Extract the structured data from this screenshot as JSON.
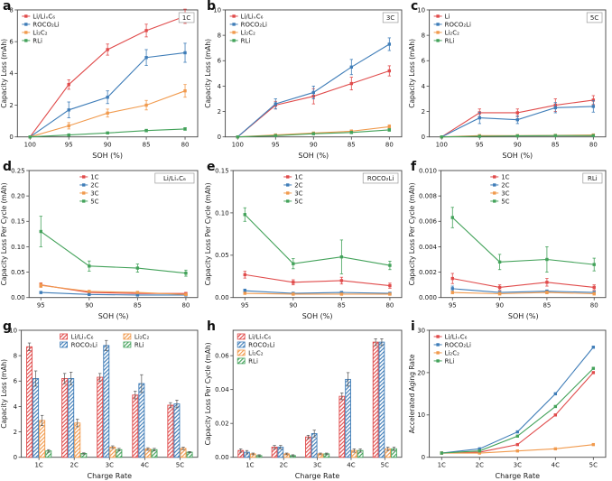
{
  "colors": {
    "red": "#e04b4b",
    "blue": "#3f7db8",
    "orange": "#f19a4d",
    "green": "#43a25a"
  },
  "chart_data": [
    {
      "letter": "a",
      "type": "line",
      "box_label": "1C",
      "legend_pos": "top-left",
      "xlabel": "SOH (%)",
      "ylabel": "Capacity Loss (mAh)",
      "x_labels": [
        "100",
        "95",
        "90",
        "85",
        "80"
      ],
      "y_ticks": [
        "0",
        "2",
        "4",
        "6",
        "8"
      ],
      "ylim": [
        0,
        8
      ],
      "series": [
        {
          "label": "Li/LiₓC₆",
          "color": "red",
          "values": [
            0,
            3.3,
            5.5,
            6.7,
            7.6
          ],
          "err": [
            0,
            0.3,
            0.35,
            0.4,
            0.45
          ]
        },
        {
          "label": "ROCO₂Li",
          "color": "blue",
          "values": [
            0,
            1.7,
            2.5,
            5.0,
            5.3
          ],
          "err": [
            0,
            0.5,
            0.4,
            0.5,
            0.6
          ]
        },
        {
          "label": "Li₂C₂",
          "color": "orange",
          "values": [
            0,
            0.7,
            1.5,
            2.0,
            2.9
          ],
          "err": [
            0,
            0.2,
            0.25,
            0.3,
            0.4
          ]
        },
        {
          "label": "RLi",
          "color": "green",
          "values": [
            0,
            0.12,
            0.25,
            0.4,
            0.5
          ],
          "err": [
            0,
            0.05,
            0.05,
            0.08,
            0.08
          ]
        }
      ]
    },
    {
      "letter": "b",
      "type": "line",
      "box_label": "3C",
      "legend_pos": "top-left",
      "xlabel": "SOH (%)",
      "ylabel": "Capacity Loss (mAh)",
      "x_labels": [
        "100",
        "95",
        "90",
        "85",
        "80"
      ],
      "y_ticks": [
        "0",
        "2",
        "4",
        "6",
        "8",
        "10"
      ],
      "ylim": [
        0,
        10
      ],
      "series": [
        {
          "label": "Li/LiₓC₆",
          "color": "red",
          "values": [
            0,
            2.5,
            3.2,
            4.2,
            5.2
          ],
          "err": [
            0,
            0.3,
            0.6,
            0.5,
            0.4
          ]
        },
        {
          "label": "ROCO₂Li",
          "color": "blue",
          "values": [
            0,
            2.6,
            3.5,
            5.5,
            7.3
          ],
          "err": [
            0,
            0.4,
            0.5,
            0.6,
            0.5
          ]
        },
        {
          "label": "Li₂C₂",
          "color": "orange",
          "values": [
            0,
            0.15,
            0.3,
            0.45,
            0.8
          ],
          "err": [
            0,
            0.05,
            0.08,
            0.1,
            0.15
          ]
        },
        {
          "label": "RLi",
          "color": "green",
          "values": [
            0,
            0.1,
            0.25,
            0.35,
            0.55
          ],
          "err": [
            0,
            0.05,
            0.05,
            0.08,
            0.1
          ]
        }
      ]
    },
    {
      "letter": "c",
      "type": "line",
      "box_label": "5C",
      "legend_pos": "top-left",
      "xlabel": "SOH (%)",
      "ylabel": "Capacity Loss (mAh)",
      "x_labels": [
        "100",
        "95",
        "90",
        "85",
        "80"
      ],
      "y_ticks": [
        "0",
        "2",
        "4",
        "6",
        "8",
        "10"
      ],
      "ylim": [
        0,
        10
      ],
      "series": [
        {
          "label": "Li",
          "color": "red",
          "values": [
            0,
            1.9,
            1.9,
            2.5,
            2.9
          ],
          "err": [
            0,
            0.3,
            0.3,
            0.5,
            0.35
          ]
        },
        {
          "label": "ROCO₂Li",
          "color": "blue",
          "values": [
            0,
            1.5,
            1.35,
            2.3,
            2.4
          ],
          "err": [
            0,
            0.45,
            0.3,
            0.4,
            0.45
          ]
        },
        {
          "label": "Li₂C₂",
          "color": "orange",
          "values": [
            0,
            0.1,
            0.1,
            0.12,
            0.15
          ],
          "err": [
            0,
            0.05,
            0.05,
            0.05,
            0.05
          ]
        },
        {
          "label": "RLi",
          "color": "green",
          "values": [
            0,
            0.05,
            0.08,
            0.1,
            0.1
          ],
          "err": [
            0,
            0.03,
            0.03,
            0.04,
            0.04
          ]
        }
      ]
    },
    {
      "letter": "d",
      "type": "line",
      "box_label": "Li/LiₓC₆",
      "legend_pos": "mid-left",
      "xlabel": "SOH (%)",
      "ylabel": "Capacity Loss Per Cycle (mAh)",
      "x_labels": [
        "95",
        "90",
        "85",
        "80"
      ],
      "y_ticks": [
        "0.00",
        "0.05",
        "0.10",
        "0.15",
        "0.20",
        "0.25"
      ],
      "ylim": [
        0,
        0.25
      ],
      "series": [
        {
          "label": "1C",
          "color": "red",
          "values": [
            0.025,
            0.01,
            0.008,
            0.008
          ],
          "err": [
            0.004,
            0.002,
            0.002,
            0.002
          ]
        },
        {
          "label": "2C",
          "color": "blue",
          "values": [
            0.01,
            0.006,
            0.005,
            0.005
          ],
          "err": [
            0.002,
            0.001,
            0.001,
            0.001
          ]
        },
        {
          "label": "3C",
          "color": "orange",
          "values": [
            0.024,
            0.012,
            0.01,
            0.006
          ],
          "err": [
            0.004,
            0.002,
            0.002,
            0.001
          ]
        },
        {
          "label": "5C",
          "color": "green",
          "values": [
            0.13,
            0.062,
            0.058,
            0.048
          ],
          "err": [
            0.03,
            0.01,
            0.008,
            0.006
          ]
        }
      ]
    },
    {
      "letter": "e",
      "type": "line",
      "box_label": "ROCO₂Li",
      "legend_pos": "mid-left",
      "xlabel": "SOH (%)",
      "ylabel": "Capacity Loss Per Cycle (mAh)",
      "x_labels": [
        "95",
        "90",
        "85",
        "80"
      ],
      "y_ticks": [
        "0.00",
        "0.05",
        "0.10",
        "0.15"
      ],
      "ylim": [
        0,
        0.15
      ],
      "series": [
        {
          "label": "1C",
          "color": "red",
          "values": [
            0.027,
            0.018,
            0.02,
            0.014
          ],
          "err": [
            0.004,
            0.003,
            0.004,
            0.003
          ]
        },
        {
          "label": "2C",
          "color": "blue",
          "values": [
            0.008,
            0.005,
            0.006,
            0.005
          ],
          "err": [
            0.002,
            0.001,
            0.001,
            0.001
          ]
        },
        {
          "label": "3C",
          "color": "orange",
          "values": [
            0.005,
            0.004,
            0.004,
            0.004
          ],
          "err": [
            0.001,
            0.001,
            0.001,
            0.001
          ]
        },
        {
          "label": "5C",
          "color": "green",
          "values": [
            0.098,
            0.04,
            0.048,
            0.038
          ],
          "err": [
            0.008,
            0.006,
            0.02,
            0.005
          ]
        }
      ]
    },
    {
      "letter": "f",
      "type": "line",
      "box_label": "RLi",
      "legend_pos": "mid-left",
      "xlabel": "SOH (%)",
      "ylabel": "Capacity Loss Per Cycle (mAh)",
      "x_labels": [
        "95",
        "90",
        "85",
        "80"
      ],
      "y_ticks": [
        "0.000",
        "0.002",
        "0.004",
        "0.006",
        "0.008",
        "0.010"
      ],
      "ylim": [
        0,
        0.01
      ],
      "series": [
        {
          "label": "1C",
          "color": "red",
          "values": [
            0.0015,
            0.0008,
            0.0012,
            0.0008
          ],
          "err": [
            0.0004,
            0.0002,
            0.0003,
            0.0002
          ]
        },
        {
          "label": "2C",
          "color": "blue",
          "values": [
            0.0007,
            0.0004,
            0.0005,
            0.0004
          ],
          "err": [
            0.0002,
            0.0001,
            0.0001,
            0.0001
          ]
        },
        {
          "label": "3C",
          "color": "orange",
          "values": [
            0.0004,
            0.0003,
            0.0004,
            0.0003
          ],
          "err": [
            0.0001,
            0.0001,
            0.0001,
            0.0001
          ]
        },
        {
          "label": "5C",
          "color": "green",
          "values": [
            0.0063,
            0.0028,
            0.003,
            0.0026
          ],
          "err": [
            0.0008,
            0.0006,
            0.001,
            0.0005
          ]
        }
      ]
    },
    {
      "letter": "g",
      "type": "bar",
      "legend_pos": "two-col",
      "xlabel": "Charge Rate",
      "ylabel": "Capacity Loss (mAh)",
      "x_labels": [
        "1C",
        "2C",
        "3C",
        "4C",
        "5C"
      ],
      "y_ticks": [
        "0",
        "2",
        "4",
        "6",
        "8",
        "10"
      ],
      "ylim": [
        0,
        10
      ],
      "series": [
        {
          "label": "Li/LiₓC₆",
          "color": "red",
          "values": [
            8.7,
            6.2,
            6.3,
            4.9,
            4.1
          ],
          "err": [
            0.3,
            0.4,
            0.3,
            0.3,
            0.2
          ]
        },
        {
          "label": "ROCO₂Li",
          "color": "blue",
          "values": [
            6.2,
            6.2,
            8.8,
            5.8,
            4.2
          ],
          "err": [
            0.6,
            0.5,
            0.4,
            0.7,
            0.3
          ]
        },
        {
          "label": "Li₂C₂",
          "color": "orange",
          "values": [
            2.9,
            2.7,
            0.8,
            0.65,
            0.7
          ],
          "err": [
            0.4,
            0.3,
            0.1,
            0.1,
            0.1
          ]
        },
        {
          "label": "RLi",
          "color": "green",
          "values": [
            0.5,
            0.3,
            0.6,
            0.6,
            0.4
          ],
          "err": [
            0.1,
            0.05,
            0.1,
            0.1,
            0.05
          ]
        }
      ]
    },
    {
      "letter": "h",
      "type": "bar",
      "legend_pos": "top-left",
      "xlabel": "Charge Rate",
      "ylabel": "Capacity Loss Per Cycle (mAh)",
      "x_labels": [
        "1C",
        "2C",
        "3C",
        "4C",
        "5C"
      ],
      "y_ticks": [
        "0.00",
        "0.02",
        "0.04",
        "0.06"
      ],
      "ylim": [
        0,
        0.075
      ],
      "series": [
        {
          "label": "Li/LiₓC₆",
          "color": "red",
          "values": [
            0.004,
            0.006,
            0.012,
            0.036,
            0.068
          ],
          "err": [
            0.001,
            0.001,
            0.001,
            0.002,
            0.002
          ]
        },
        {
          "label": "ROCO₂Li",
          "color": "blue",
          "values": [
            0.003,
            0.006,
            0.014,
            0.046,
            0.068
          ],
          "err": [
            0.001,
            0.001,
            0.002,
            0.004,
            0.002
          ]
        },
        {
          "label": "Li₂C₂",
          "color": "orange",
          "values": [
            0.002,
            0.002,
            0.002,
            0.004,
            0.005
          ],
          "err": [
            0.0005,
            0.0005,
            0.0005,
            0.001,
            0.001
          ]
        },
        {
          "label": "RLi",
          "color": "green",
          "values": [
            0.001,
            0.001,
            0.002,
            0.004,
            0.005
          ],
          "err": [
            0.0005,
            0.0005,
            0.0005,
            0.001,
            0.001
          ]
        }
      ]
    },
    {
      "letter": "i",
      "type": "line",
      "legend_pos": "top-left",
      "xlabel": "Charge Rate",
      "ylabel": "Accelerated Aging Rate",
      "x_labels": [
        "1C",
        "2C",
        "3C",
        "4C",
        "5C"
      ],
      "y_ticks": [
        "0",
        "10",
        "20",
        "30"
      ],
      "ylim": [
        0,
        30
      ],
      "series": [
        {
          "label": "Li/LiₓC₆",
          "color": "red",
          "values": [
            1,
            1.2,
            3,
            10,
            20
          ]
        },
        {
          "label": "ROCO₂Li",
          "color": "blue",
          "values": [
            1,
            2,
            6,
            15,
            26
          ]
        },
        {
          "label": "Li₂C₂",
          "color": "orange",
          "values": [
            1,
            1,
            1.5,
            2,
            3
          ]
        },
        {
          "label": "RLi",
          "color": "green",
          "values": [
            1,
            1.5,
            5,
            12,
            21
          ]
        }
      ]
    }
  ]
}
